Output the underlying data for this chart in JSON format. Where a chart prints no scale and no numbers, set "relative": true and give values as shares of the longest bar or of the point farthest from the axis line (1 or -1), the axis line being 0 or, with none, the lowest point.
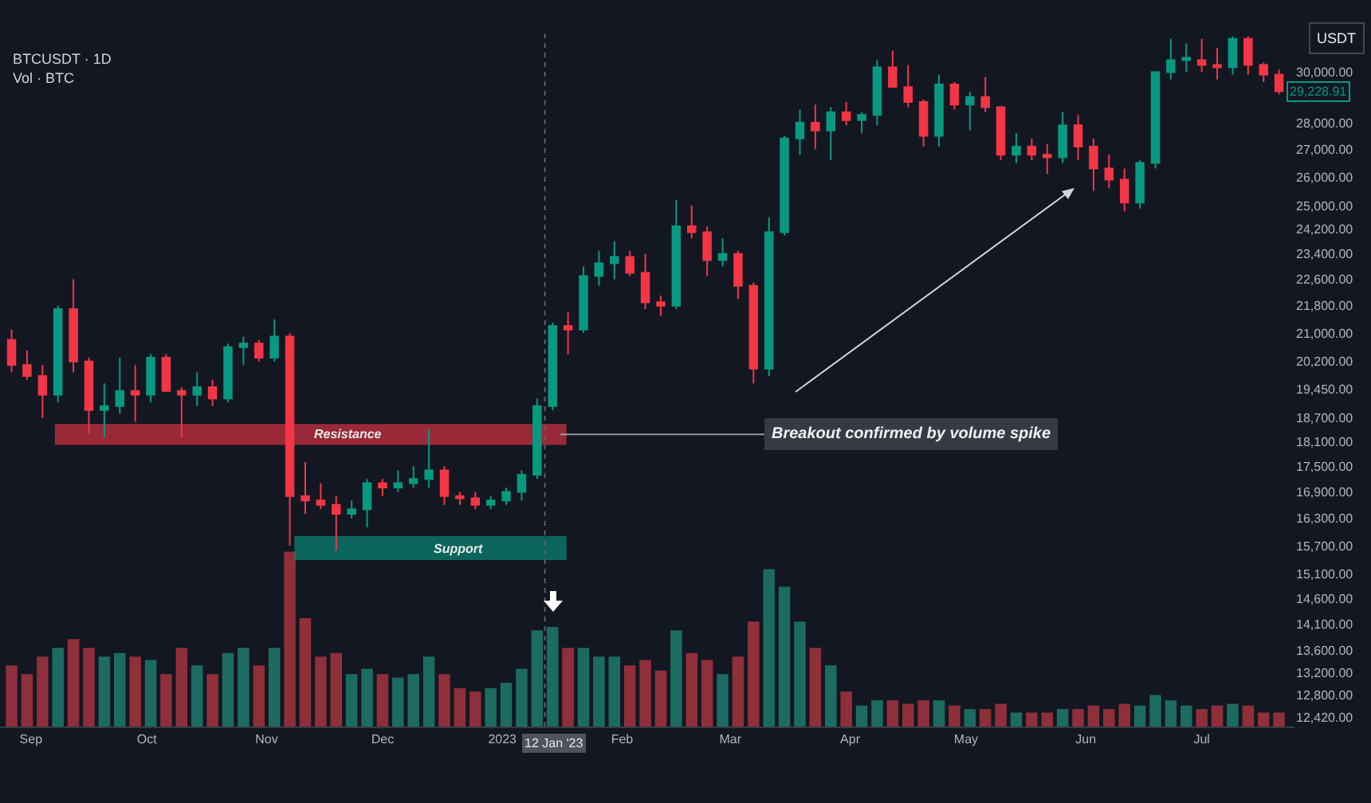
{
  "chart_data": [
    {
      "type": "candlestick",
      "title": "BTCUSDT · 1D",
      "x": [
        "2022-08-27",
        "2022-08-31",
        "2022-09-04",
        "2022-09-08",
        "2022-09-12",
        "2022-09-16",
        "2022-09-20",
        "2022-09-24",
        "2022-09-28",
        "2022-10-02",
        "2022-10-06",
        "2022-10-10",
        "2022-10-14",
        "2022-10-18",
        "2022-10-22",
        "2022-10-26",
        "2022-10-30",
        "2022-11-03",
        "2022-11-07",
        "2022-11-11",
        "2022-11-15",
        "2022-11-19",
        "2022-11-23",
        "2022-11-27",
        "2022-12-01",
        "2022-12-05",
        "2022-12-09",
        "2022-12-13",
        "2022-12-17",
        "2022-12-21",
        "2022-12-25",
        "2022-12-29",
        "2023-01-02",
        "2023-01-06",
        "2023-01-10",
        "2023-01-14",
        "2023-01-18",
        "2023-01-22",
        "2023-01-26",
        "2023-01-30",
        "2023-02-03",
        "2023-02-07",
        "2023-02-11",
        "2023-02-15",
        "2023-02-19",
        "2023-02-23",
        "2023-02-27",
        "2023-03-03",
        "2023-03-07",
        "2023-03-11",
        "2023-03-15",
        "2023-03-19",
        "2023-03-23",
        "2023-03-27",
        "2023-03-31",
        "2023-04-04",
        "2023-04-08",
        "2023-04-12",
        "2023-04-16",
        "2023-04-20",
        "2023-04-24",
        "2023-04-28",
        "2023-05-02",
        "2023-05-06",
        "2023-05-10",
        "2023-05-14",
        "2023-05-18",
        "2023-05-22",
        "2023-05-26",
        "2023-05-30",
        "2023-06-03",
        "2023-06-07",
        "2023-06-11",
        "2023-06-15",
        "2023-06-19",
        "2023-06-23",
        "2023-06-27",
        "2023-07-01",
        "2023-07-05",
        "2023-07-09",
        "2023-07-13",
        "2023-07-17",
        "2023-07-21"
      ],
      "ohlc": [
        [
          20800,
          21100,
          19900,
          20100
        ],
        [
          20100,
          20500,
          19700,
          19800
        ],
        [
          19800,
          20100,
          18700,
          19300
        ],
        [
          19300,
          21800,
          19100,
          21700
        ],
        [
          21700,
          22600,
          19900,
          20200
        ],
        [
          20200,
          20300,
          18300,
          18900
        ],
        [
          18900,
          19600,
          18200,
          19000
        ],
        [
          19000,
          20300,
          18800,
          19400
        ],
        [
          19400,
          20100,
          18600,
          19300
        ],
        [
          19300,
          20400,
          19100,
          20300
        ],
        [
          20300,
          20400,
          19400,
          19400
        ],
        [
          19400,
          19500,
          18200,
          19300
        ],
        [
          19300,
          19900,
          19000,
          19500
        ],
        [
          19500,
          19700,
          19000,
          19200
        ],
        [
          19200,
          20700,
          19100,
          20600
        ],
        [
          20600,
          20900,
          20100,
          20700
        ],
        [
          20700,
          20800,
          20200,
          20300
        ],
        [
          20300,
          21400,
          20200,
          20900
        ],
        [
          20900,
          21000,
          15700,
          16800
        ],
        [
          16800,
          17600,
          16400,
          16700
        ],
        [
          16700,
          17100,
          16500,
          16600
        ],
        [
          16600,
          16800,
          15600,
          16400
        ],
        [
          16400,
          16700,
          16300,
          16500
        ],
        [
          16500,
          17200,
          16100,
          17100
        ],
        [
          17100,
          17200,
          16800,
          17000
        ],
        [
          17000,
          17400,
          16900,
          17100
        ],
        [
          17100,
          17500,
          17000,
          17200
        ],
        [
          17200,
          18400,
          17000,
          17400
        ],
        [
          17400,
          17500,
          16600,
          16800
        ],
        [
          16800,
          16900,
          16600,
          16750
        ],
        [
          16750,
          16900,
          16500,
          16600
        ],
        [
          16600,
          16800,
          16500,
          16700
        ],
        [
          16700,
          17000,
          16600,
          16900
        ],
        [
          16900,
          17400,
          16700,
          17300
        ],
        [
          17300,
          19200,
          17200,
          19000
        ],
        [
          19000,
          21300,
          18900,
          21200
        ],
        [
          21200,
          21600,
          20400,
          21100
        ],
        [
          21100,
          23000,
          21000,
          22700
        ],
        [
          22700,
          23500,
          22400,
          23100
        ],
        [
          23100,
          23800,
          22600,
          23300
        ],
        [
          23300,
          23500,
          22700,
          22800
        ],
        [
          22800,
          23400,
          21700,
          21900
        ],
        [
          21900,
          22100,
          21500,
          21800
        ],
        [
          21800,
          25200,
          21700,
          24300
        ],
        [
          24300,
          25000,
          23900,
          24100
        ],
        [
          24100,
          24300,
          22700,
          23200
        ],
        [
          23200,
          23900,
          23000,
          23400
        ],
        [
          23400,
          23500,
          22000,
          22400
        ],
        [
          22400,
          22500,
          19600,
          20000
        ],
        [
          20000,
          24600,
          19800,
          24100
        ],
        [
          24100,
          27500,
          24000,
          27400
        ],
        [
          27400,
          28500,
          26800,
          28000
        ],
        [
          28000,
          28700,
          27000,
          27700
        ],
        [
          27700,
          28600,
          26600,
          28400
        ],
        [
          28400,
          28800,
          27900,
          28100
        ],
        [
          28100,
          28400,
          27600,
          28300
        ],
        [
          28300,
          30500,
          27900,
          30200
        ],
        [
          30200,
          30900,
          29400,
          29400
        ],
        [
          29400,
          30300,
          28600,
          28800
        ],
        [
          28800,
          28900,
          27100,
          27500
        ],
        [
          27500,
          29900,
          27100,
          29500
        ],
        [
          29500,
          29600,
          28500,
          28700
        ],
        [
          28700,
          29200,
          27700,
          29000
        ],
        [
          29000,
          29800,
          28400,
          28600
        ],
        [
          28600,
          28600,
          26600,
          26800
        ],
        [
          26800,
          27600,
          26500,
          27100
        ],
        [
          27100,
          27400,
          26600,
          26800
        ],
        [
          26800,
          27200,
          26100,
          26700
        ],
        [
          26700,
          28400,
          26500,
          27900
        ],
        [
          27900,
          28300,
          26600,
          27100
        ],
        [
          27100,
          27400,
          25500,
          26300
        ],
        [
          26300,
          26800,
          25600,
          25900
        ],
        [
          25900,
          26300,
          24800,
          25100
        ],
        [
          25100,
          26600,
          24900,
          26500
        ],
        [
          26500,
          30000,
          26300,
          30000
        ],
        [
          30000,
          31400,
          29700,
          30500
        ],
        [
          30500,
          31200,
          30000,
          30600
        ],
        [
          30500,
          31400,
          30000,
          30300
        ],
        [
          30300,
          31000,
          29700,
          30200
        ],
        [
          30200,
          31500,
          29900,
          31400
        ],
        [
          31400,
          31500,
          29900,
          30300
        ],
        [
          30300,
          30400,
          29600,
          29900
        ],
        [
          29900,
          30100,
          29100,
          29228.91
        ]
      ],
      "colors": [
        "#f23645",
        "#f23645",
        "#f23645",
        "#089981",
        "#f23645",
        "#f23645",
        "#089981",
        "#089981",
        "#f23645",
        "#089981",
        "#f23645",
        "#f23645",
        "#089981",
        "#f23645",
        "#089981",
        "#089981",
        "#f23645",
        "#089981",
        "#f23645",
        "#f23645",
        "#f23645",
        "#f23645",
        "#089981",
        "#089981",
        "#f23645",
        "#089981",
        "#089981",
        "#089981",
        "#f23645",
        "#f23645",
        "#f23645",
        "#089981",
        "#089981",
        "#089981",
        "#089981",
        "#089981",
        "#f23645",
        "#089981",
        "#089981",
        "#089981",
        "#f23645",
        "#f23645",
        "#f23645",
        "#089981",
        "#f23645",
        "#f23645",
        "#089981",
        "#f23645",
        "#f23645",
        "#089981",
        "#089981",
        "#089981",
        "#f23645",
        "#089981",
        "#f23645",
        "#089981",
        "#089981",
        "#f23645",
        "#f23645",
        "#f23645",
        "#089981",
        "#f23645",
        "#089981",
        "#f23645",
        "#f23645",
        "#089981",
        "#f23645",
        "#f23645",
        "#089981",
        "#f23645",
        "#f23645",
        "#f23645",
        "#f23645",
        "#089981",
        "#089981",
        "#089981",
        "#089981",
        "#f23645",
        "#f23645",
        "#089981",
        "#f23645",
        "#f23645",
        "#f23645"
      ],
      "log": "y",
      "xlim": [
        "2022-08-24",
        "2023-07-25"
      ],
      "ylim": [
        12260,
        31700
      ],
      "xticks": [
        {
          "value": "2022-09-01",
          "label": "Sep"
        },
        {
          "value": "2022-10-01",
          "label": "Oct"
        },
        {
          "value": "2022-11-01",
          "label": "Nov"
        },
        {
          "value": "2022-12-01",
          "label": "Dec"
        },
        {
          "value": "2023-01-01",
          "label": "2023"
        },
        {
          "value": "2023-02-01",
          "label": "Feb"
        },
        {
          "value": "2023-03-01",
          "label": "Mar"
        },
        {
          "value": "2023-04-01",
          "label": "Apr"
        },
        {
          "value": "2023-05-01",
          "label": "May"
        },
        {
          "value": "2023-06-01",
          "label": "Jun"
        },
        {
          "value": "2023-07-01",
          "label": "Jul"
        }
      ],
      "yticks": [
        {
          "value": 30000,
          "label": "30,000.00"
        },
        {
          "value": 28000,
          "label": "28,000.00"
        },
        {
          "value": 27000,
          "label": "27,000.00"
        },
        {
          "value": 26000,
          "label": "26,000.00"
        },
        {
          "value": 25000,
          "label": "25,000.00"
        },
        {
          "value": 24200,
          "label": "24,200.00"
        },
        {
          "value": 23400,
          "label": "23,400.00"
        },
        {
          "value": 22600,
          "label": "22,600.00"
        },
        {
          "value": 21800,
          "label": "21,800.00"
        },
        {
          "value": 21000,
          "label": "21,000.00"
        },
        {
          "value": 20200,
          "label": "20,200.00"
        },
        {
          "value": 19450,
          "label": "19,450.00"
        },
        {
          "value": 18700,
          "label": "18,700.00"
        },
        {
          "value": 18100,
          "label": "18,100.00"
        },
        {
          "value": 17500,
          "label": "17,500.00"
        },
        {
          "value": 16900,
          "label": "16,900.00"
        },
        {
          "value": 16300,
          "label": "16,300.00"
        },
        {
          "value": 15700,
          "label": "15,700.00"
        },
        {
          "value": 15100,
          "label": "15,100.00"
        },
        {
          "value": 14600,
          "label": "14,600.00"
        },
        {
          "value": 14100,
          "label": "14,100.00"
        },
        {
          "value": 13600,
          "label": "13,600.00"
        },
        {
          "value": 13200,
          "label": "13,200.00"
        },
        {
          "value": 12800,
          "label": "12,800.00"
        },
        {
          "value": 12420,
          "label": "12,420.00"
        }
      ],
      "bands": [
        {
          "axis": "y",
          "from": 18040,
          "to": 18520,
          "label": "Resistance",
          "color": "#f23645"
        },
        {
          "axis": "y",
          "from": 15410,
          "to": 15890,
          "label": "Support",
          "color": "#089981"
        }
      ],
      "ref_lines": [
        {
          "axis": "x",
          "value": "2023-01-12",
          "label": "12 Jan '23",
          "line_style": "dotted"
        }
      ],
      "annotations": [
        "USDT",
        {
          "text": "29,228.91",
          "x": "2023-07-21",
          "y": 29228.91
        },
        {
          "text": "Breakout confirmed by volume spike",
          "x": "2023-01-16",
          "y": 18280
        }
      ]
    },
    {
      "type": "bar",
      "title": "Vol · BTC",
      "relative": true,
      "tick_labels": false,
      "xlim": [
        "2022-08-24",
        "2023-07-25"
      ],
      "x": [
        "2022-08-27",
        "2022-08-31",
        "2022-09-04",
        "2022-09-08",
        "2022-09-12",
        "2022-09-16",
        "2022-09-20",
        "2022-09-24",
        "2022-09-28",
        "2022-10-02",
        "2022-10-06",
        "2022-10-10",
        "2022-10-14",
        "2022-10-18",
        "2022-10-22",
        "2022-10-26",
        "2022-10-30",
        "2022-11-03",
        "2022-11-07",
        "2022-11-11",
        "2022-11-15",
        "2022-11-19",
        "2022-11-23",
        "2022-11-27",
        "2022-12-01",
        "2022-12-05",
        "2022-12-09",
        "2022-12-13",
        "2022-12-17",
        "2022-12-21",
        "2022-12-25",
        "2022-12-29",
        "2023-01-02",
        "2023-01-06",
        "2023-01-10",
        "2023-01-14",
        "2023-01-18",
        "2023-01-22",
        "2023-01-26",
        "2023-01-30",
        "2023-02-03",
        "2023-02-07",
        "2023-02-11",
        "2023-02-15",
        "2023-02-19",
        "2023-02-23",
        "2023-02-27",
        "2023-03-03",
        "2023-03-07",
        "2023-03-11",
        "2023-03-15",
        "2023-03-19",
        "2023-03-23",
        "2023-03-27",
        "2023-03-31",
        "2023-04-04",
        "2023-04-08",
        "2023-04-12",
        "2023-04-16",
        "2023-04-20",
        "2023-04-24",
        "2023-04-28",
        "2023-05-02",
        "2023-05-06",
        "2023-05-10",
        "2023-05-14",
        "2023-05-18",
        "2023-05-22",
        "2023-05-26",
        "2023-05-30",
        "2023-06-03",
        "2023-06-07",
        "2023-06-11",
        "2023-06-15",
        "2023-06-19",
        "2023-06-23",
        "2023-06-27",
        "2023-07-01",
        "2023-07-05",
        "2023-07-09",
        "2023-07-13",
        "2023-07-17",
        "2023-07-21"
      ],
      "values": [
        0.35,
        0.3,
        0.4,
        0.45,
        0.5,
        0.45,
        0.4,
        0.42,
        0.4,
        0.38,
        0.3,
        0.45,
        0.35,
        0.3,
        0.42,
        0.45,
        0.35,
        0.45,
        1,
        0.62,
        0.4,
        0.42,
        0.3,
        0.33,
        0.3,
        0.28,
        0.3,
        0.4,
        0.3,
        0.22,
        0.2,
        0.22,
        0.25,
        0.33,
        0.55,
        0.57,
        0.45,
        0.45,
        0.4,
        0.4,
        0.35,
        0.38,
        0.32,
        0.55,
        0.42,
        0.38,
        0.3,
        0.4,
        0.6,
        0.9,
        0.8,
        0.6,
        0.45,
        0.35,
        0.2,
        0.12,
        0.15,
        0.15,
        0.13,
        0.15,
        0.15,
        0.12,
        0.1,
        0.1,
        0.13,
        0.08,
        0.08,
        0.08,
        0.1,
        0.1,
        0.12,
        0.1,
        0.13,
        0.12,
        0.18,
        0.15,
        0.12,
        0.1,
        0.12,
        0.13,
        0.12,
        0.08,
        0.08
      ],
      "colors": [
        "#8e2f39",
        "#8e2f39",
        "#8e2f39",
        "#1c6b60",
        "#8e2f39",
        "#8e2f39",
        "#1c6b60",
        "#1c6b60",
        "#8e2f39",
        "#1c6b60",
        "#8e2f39",
        "#8e2f39",
        "#1c6b60",
        "#8e2f39",
        "#1c6b60",
        "#1c6b60",
        "#8e2f39",
        "#1c6b60",
        "#8e2f39",
        "#8e2f39",
        "#8e2f39",
        "#8e2f39",
        "#1c6b60",
        "#1c6b60",
        "#8e2f39",
        "#1c6b60",
        "#1c6b60",
        "#1c6b60",
        "#8e2f39",
        "#8e2f39",
        "#8e2f39",
        "#1c6b60",
        "#1c6b60",
        "#1c6b60",
        "#1c6b60",
        "#1c6b60",
        "#8e2f39",
        "#1c6b60",
        "#1c6b60",
        "#1c6b60",
        "#8e2f39",
        "#8e2f39",
        "#8e2f39",
        "#1c6b60",
        "#8e2f39",
        "#8e2f39",
        "#1c6b60",
        "#8e2f39",
        "#8e2f39",
        "#1c6b60",
        "#1c6b60",
        "#1c6b60",
        "#8e2f39",
        "#1c6b60",
        "#8e2f39",
        "#1c6b60",
        "#1c6b60",
        "#8e2f39",
        "#8e2f39",
        "#8e2f39",
        "#1c6b60",
        "#8e2f39",
        "#1c6b60",
        "#8e2f39",
        "#8e2f39",
        "#1c6b60",
        "#8e2f39",
        "#8e2f39",
        "#1c6b60",
        "#8e2f39",
        "#8e2f39",
        "#8e2f39",
        "#8e2f39",
        "#1c6b60",
        "#1c6b60",
        "#1c6b60",
        "#1c6b60",
        "#8e2f39",
        "#8e2f39",
        "#1c6b60",
        "#8e2f39",
        "#8e2f39",
        "#8e2f39"
      ]
    }
  ]
}
